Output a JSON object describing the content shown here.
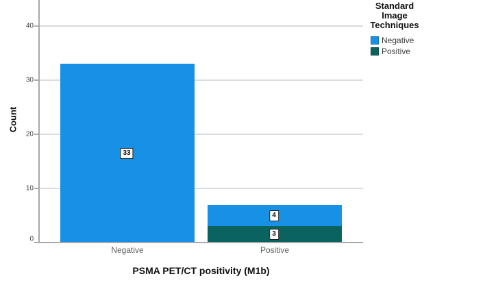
{
  "chart_data": {
    "type": "bar",
    "stacked": true,
    "title": "",
    "xlabel": "PSMA PET/CT positivity (M1b)",
    "ylabel": "Count",
    "categories": [
      "Negative",
      "Positive"
    ],
    "yticks": [
      "0",
      "10",
      "20",
      "30",
      "40"
    ],
    "ylim": [
      0,
      45
    ],
    "grid": true,
    "legend": {
      "title": "Standard Image Techniques",
      "position": "top-right"
    },
    "series": [
      {
        "name": "Negative",
        "color": "#1791E6",
        "values": [
          33,
          4
        ]
      },
      {
        "name": "Positive",
        "color": "#0A635E",
        "values": [
          0,
          3
        ]
      }
    ],
    "bar_value_labels": [
      33,
      4,
      3
    ]
  },
  "colors": {
    "bar_negative": "#1791E6",
    "bar_positive": "#0A635E",
    "gridline": "#DCDCDC",
    "axis_line": "#A8A8A8",
    "ytick_text": "#3D3D3D",
    "category_text": "#5F5F5F",
    "background": "#FFFFFF"
  }
}
